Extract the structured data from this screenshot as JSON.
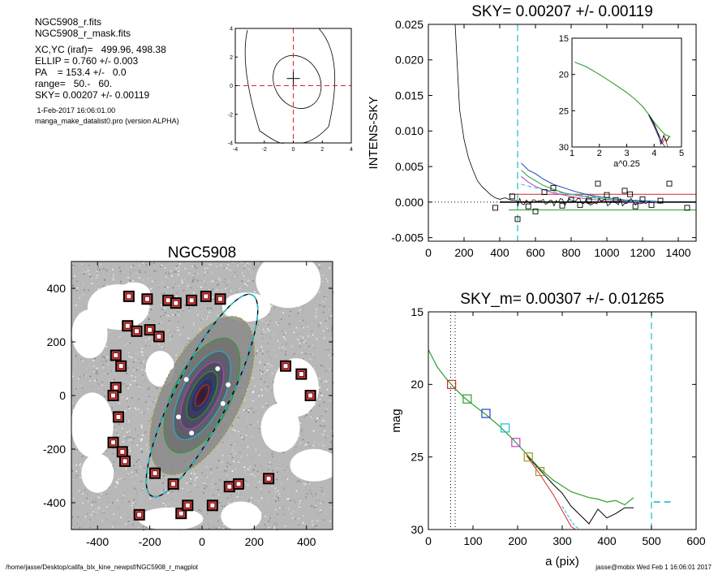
{
  "info": {
    "files": [
      "NGC5908_r.fits",
      "NGC5908_r_mask.fits"
    ],
    "params": [
      "XC,YC (iraf)=   499.96, 498.38",
      "ELLIP = 0.760 +/- 0.003",
      "PA    = 153.4 +/-   0.0",
      "range=   50.-   60.",
      "SKY= 0.00207 +/- 0.00119"
    ],
    "date": " 1-Feb-2017 16:06:01.00",
    "program": "manga_make_datalist0.pro (version ALPHA)"
  },
  "footer": {
    "path": "/home/jasse/Desktop/califa_blx_kine_newpsf/NGC5908_r_magplot",
    "user": "jasse@mobix  Wed Feb  1 16:06:01 2017"
  },
  "colors": {
    "black": "#000000",
    "red": "#d62728",
    "green": "#2ca02c",
    "blue": "#1f3fbf",
    "cyan": "#17becf",
    "magenta": "#c040c0",
    "olive": "#9a9a20",
    "dark_red": "#8b0000"
  },
  "chart_data": [
    {
      "id": "contour",
      "type": "contour",
      "xlim": [
        -4,
        4
      ],
      "ylim": [
        -4,
        4
      ],
      "xticks": [
        -4,
        -2,
        0,
        2,
        4
      ],
      "yticks": [
        -4,
        -2,
        0,
        2,
        4
      ],
      "center": [
        0,
        0.5
      ]
    },
    {
      "id": "sky",
      "type": "line",
      "title": "SKY= 0.00207 +/- 0.00119",
      "ylabel": "INTENS-SKY",
      "xlim": [
        0,
        1500
      ],
      "ylim": [
        -0.0055,
        0.025
      ],
      "xticks": [
        "0",
        "200",
        "400",
        "600",
        "800",
        "1000",
        "1200",
        "1400"
      ],
      "yticks": [
        "-0.005",
        "0.000",
        "0.005",
        "0.010",
        "0.015",
        "0.020",
        "0.025"
      ],
      "vline": 500,
      "profile": {
        "x": [
          150,
          175,
          200,
          225,
          250,
          275,
          300,
          325,
          350,
          375,
          400,
          430,
          460,
          500
        ],
        "y": [
          0.025,
          0.013,
          0.0088,
          0.0062,
          0.0045,
          0.003,
          0.0022,
          0.0016,
          0.001,
          0.0006,
          0.0004,
          0.0006,
          0.0003,
          0.0002
        ]
      },
      "sky_levels": {
        "red": 0.0011,
        "black": 0.0,
        "green": -0.0011
      },
      "points": {
        "x": [
          375,
          470,
          500,
          560,
          600,
          650,
          700,
          750,
          800,
          850,
          900,
          950,
          1000,
          1050,
          1100,
          1130,
          1160,
          1200,
          1250,
          1300,
          1350,
          1450
        ],
        "y": [
          -0.0008,
          0.0008,
          -0.0024,
          -0.0006,
          -0.0013,
          0.0014,
          0.002,
          -0.0005,
          0.0003,
          -0.0004,
          0.0002,
          0.0026,
          0.001,
          0.0003,
          0.0016,
          0.0011,
          -0.0006,
          0.0004,
          -0.0004,
          0.0002,
          0.0026,
          -0.0008
        ]
      },
      "inset": {
        "xlabel": "a^0.25",
        "xlim": [
          1,
          5
        ],
        "ylim": [
          15,
          30
        ],
        "xticks": [
          "1",
          "2",
          "3",
          "4",
          "5"
        ],
        "yticks": [
          "15",
          "20",
          "25",
          "30"
        ],
        "green": {
          "x": [
            1.1,
            1.5,
            2.0,
            2.5,
            3.0,
            3.3,
            3.6,
            3.8,
            4.0,
            4.2,
            4.4,
            4.6
          ],
          "y": [
            18.3,
            18.9,
            20.0,
            21.2,
            22.5,
            23.4,
            24.5,
            25.5,
            26.6,
            27.5,
            28.3,
            28.6
          ]
        }
      }
    },
    {
      "id": "image",
      "type": "image",
      "title": "NGC5908",
      "xlim": [
        -500,
        500
      ],
      "ylim": [
        -500,
        500
      ],
      "xticks": [
        "-400",
        "-200",
        "0",
        "200",
        "400"
      ],
      "yticks": [
        "-400",
        "-200",
        "0",
        "200",
        "400"
      ],
      "ellipse": {
        "a": 430,
        "b": 103,
        "pa_deg": 63.4
      },
      "galaxy_ellipses": [
        [
          330,
          150
        ],
        [
          240,
          110
        ],
        [
          185,
          80
        ],
        [
          140,
          60
        ],
        [
          100,
          43
        ],
        [
          70,
          30
        ],
        [
          45,
          19
        ],
        [
          25,
          11
        ]
      ],
      "boxes": {
        "x": [
          -280,
          -210,
          -130,
          -100,
          -40,
          15,
          70,
          -285,
          -250,
          -200,
          -165,
          -330,
          -310,
          -330,
          -340,
          -320,
          -340,
          -305,
          -295,
          -110,
          -240,
          -80,
          -55,
          40,
          105,
          140,
          255,
          -180,
          320,
          380,
          415
        ],
        "y": [
          370,
          360,
          355,
          345,
          355,
          370,
          360,
          260,
          240,
          245,
          220,
          150,
          110,
          30,
          0,
          -80,
          -175,
          -210,
          -245,
          -330,
          -445,
          -440,
          -410,
          -410,
          -340,
          -330,
          -310,
          -290,
          110,
          80,
          0
        ]
      }
    },
    {
      "id": "mag",
      "type": "line",
      "title": "SKY_m=  0.00307 +/- 0.01265",
      "xlabel": "a (pix)",
      "ylabel": "mag",
      "xlim": [
        0,
        600
      ],
      "ylim": [
        15,
        30
      ],
      "xticks": [
        "0",
        "100",
        "200",
        "300",
        "400",
        "500",
        "600"
      ],
      "yticks": [
        "15",
        "20",
        "25",
        "30"
      ],
      "vlines_dotted": [
        50,
        60
      ],
      "vline_dashed": 500,
      "green": {
        "x": [
          0,
          20,
          40,
          60,
          80,
          100,
          130,
          160,
          190,
          220,
          250,
          280,
          300,
          320,
          340,
          360,
          380,
          400,
          420,
          440,
          460
        ],
        "y": [
          17.6,
          18.8,
          19.6,
          20.3,
          20.9,
          21.4,
          22.1,
          22.9,
          23.8,
          24.8,
          25.8,
          26.6,
          27.0,
          27.4,
          27.6,
          27.8,
          27.9,
          28.1,
          28.0,
          28.3,
          27.8
        ]
      },
      "red": {
        "x": [
          220,
          250,
          280,
          300,
          320,
          330,
          340
        ],
        "y": [
          24.9,
          26.2,
          27.6,
          28.7,
          29.8,
          30.0,
          30.0
        ]
      },
      "black": {
        "x": [
          220,
          250,
          280,
          300,
          320,
          340,
          360,
          380,
          400,
          420,
          440,
          460
        ],
        "y": [
          24.9,
          25.9,
          26.9,
          27.5,
          28.4,
          29.0,
          29.6,
          28.6,
          29.2,
          28.9,
          28.5,
          28.5
        ]
      },
      "markers": [
        {
          "x": 52,
          "y": 20.0,
          "color": "red"
        },
        {
          "x": 87,
          "y": 21.0,
          "color": "green"
        },
        {
          "x": 129,
          "y": 22.0,
          "color": "blue"
        },
        {
          "x": 172,
          "y": 23.0,
          "color": "cyan"
        },
        {
          "x": 196,
          "y": 24.0,
          "color": "magenta"
        },
        {
          "x": 224,
          "y": 25.0,
          "color": "olive"
        },
        {
          "x": 250,
          "y": 26.0,
          "color": "olive"
        }
      ],
      "sky_marks": {
        "y": 28.1
      }
    }
  ]
}
